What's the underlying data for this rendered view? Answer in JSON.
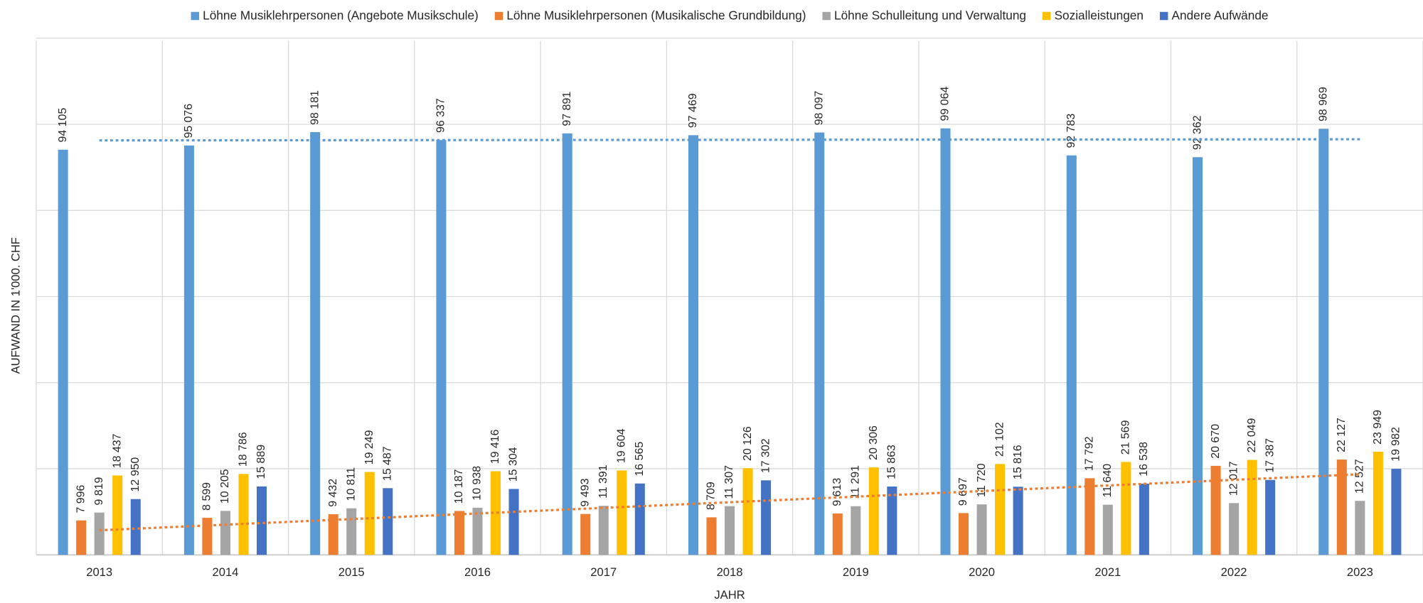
{
  "chart_data": {
    "type": "bar",
    "x_label": "JAHR",
    "y_label": "AUFWAND IN 1'000. CHF",
    "categories": [
      "2013",
      "2014",
      "2015",
      "2016",
      "2017",
      "2018",
      "2019",
      "2020",
      "2021",
      "2022",
      "2023"
    ],
    "series": [
      {
        "name": "Löhne Musiklehrpersonen (Angebote Musikschule)",
        "color": "#5b9bd5",
        "trendline": true,
        "values": [
          94105,
          95076,
          98181,
          96337,
          97891,
          97469,
          98097,
          99064,
          92783,
          92362,
          98969
        ],
        "value_labels": [
          "94 105",
          "95 076",
          "98 181",
          "96 337",
          "97 891",
          "97 469",
          "98 097",
          "99 064",
          "92 783",
          "92 362",
          "98 969"
        ]
      },
      {
        "name": "Löhne Musiklehrpersonen (Musikalische Grundbildung)",
        "color": "#ed7d31",
        "trendline": true,
        "values": [
          7996,
          8599,
          9432,
          10187,
          9493,
          8709,
          9613,
          9697,
          17792,
          20670,
          22127
        ],
        "value_labels": [
          "7 996",
          "8 599",
          "9 432",
          "10 187",
          "9 493",
          "8 709",
          "9 613",
          "9 697",
          "17 792",
          "20 670",
          "22 127"
        ]
      },
      {
        "name": "Löhne Schulleitung und Verwaltung",
        "color": "#a5a5a5",
        "trendline": false,
        "values": [
          9819,
          10205,
          10811,
          10938,
          11391,
          11307,
          11291,
          11720,
          11640,
          12017,
          12527
        ],
        "value_labels": [
          "9 819",
          "10 205",
          "10 811",
          "10 938",
          "11 391",
          "11 307",
          "11 291",
          "11 720",
          "11 640",
          "12 017",
          "12 527"
        ]
      },
      {
        "name": "Sozialleistungen",
        "color": "#ffc000",
        "trendline": false,
        "values": [
          18437,
          18786,
          19249,
          19416,
          19604,
          20126,
          20306,
          21102,
          21569,
          22049,
          23949
        ],
        "value_labels": [
          "18 437",
          "18 786",
          "19 249",
          "19 416",
          "19 604",
          "20 126",
          "20 306",
          "21 102",
          "21 569",
          "22 049",
          "23 949"
        ]
      },
      {
        "name": "Andere Aufwände",
        "color": "#4472c4",
        "trendline": false,
        "values": [
          12950,
          15889,
          15487,
          15304,
          16565,
          17302,
          15863,
          15816,
          16538,
          17387,
          19982
        ],
        "value_labels": [
          "12 950",
          "15 889",
          "15 487",
          "15 304",
          "16 565",
          "17 302",
          "15 863",
          "15 816",
          "16 538",
          "17 387",
          "19 982"
        ]
      }
    ],
    "ylim": [
      0,
      120000
    ],
    "yticks": [
      0,
      20000,
      40000,
      60000,
      80000,
      100000,
      120000
    ],
    "grid": true,
    "legend": "top"
  }
}
